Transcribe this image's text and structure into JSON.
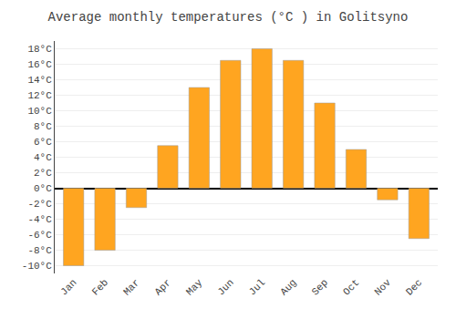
{
  "chart_data": {
    "type": "bar",
    "title": "Average monthly temperatures (°C ) in Golitsyno",
    "categories": [
      "Jan",
      "Feb",
      "Mar",
      "Apr",
      "May",
      "Jun",
      "Jul",
      "Aug",
      "Sep",
      "Oct",
      "Nov",
      "Dec"
    ],
    "values": [
      -10,
      -8,
      -2.5,
      5.5,
      13,
      16.5,
      18,
      16.5,
      11,
      5,
      -1.5,
      -6.5
    ],
    "color": "#FFA520",
    "ylim": [
      -11,
      19
    ],
    "yticks": [
      {
        "value": -10,
        "label": "-10°C"
      },
      {
        "value": -8,
        "label": "-8°C"
      },
      {
        "value": -6,
        "label": "-6°C"
      },
      {
        "value": -4,
        "label": "-4°C"
      },
      {
        "value": -2,
        "label": "-2°C"
      },
      {
        "value": 0,
        "label": "0°C"
      },
      {
        "value": 2,
        "label": "2°C"
      },
      {
        "value": 4,
        "label": "4°C"
      },
      {
        "value": 6,
        "label": "6°C"
      },
      {
        "value": 8,
        "label": "8°C"
      },
      {
        "value": 10,
        "label": "10°C"
      },
      {
        "value": 12,
        "label": "12°C"
      },
      {
        "value": 14,
        "label": "14°C"
      },
      {
        "value": 16,
        "label": "16°C"
      },
      {
        "value": 18,
        "label": "18°C"
      }
    ],
    "grid": true
  }
}
